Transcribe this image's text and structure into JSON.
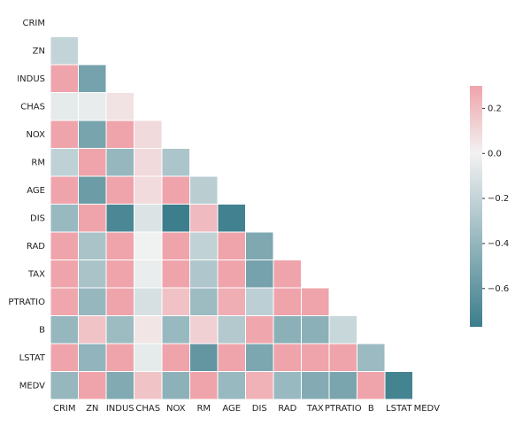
{
  "chart_data": {
    "type": "heatmap",
    "y_labels": [
      "CRIM",
      "ZN",
      "INDUS",
      "CHAS",
      "NOX",
      "RM",
      "AGE",
      "DIS",
      "RAD",
      "TAX",
      "PTRATIO",
      "B",
      "LSTAT",
      "MEDV"
    ],
    "x_labels": [
      "CRIM",
      "ZN",
      "INDUS",
      "CHAS",
      "NOX",
      "RM",
      "AGE",
      "DIS",
      "RAD",
      "TAX",
      "PTRATIO",
      "B",
      "LSTAT",
      "MEDV"
    ],
    "values": [
      [
        null,
        null,
        null,
        null,
        null,
        null,
        null,
        null,
        null,
        null,
        null,
        null,
        null,
        null
      ],
      [
        -0.2,
        null,
        null,
        null,
        null,
        null,
        null,
        null,
        null,
        null,
        null,
        null,
        null,
        null
      ],
      [
        0.41,
        -0.53,
        null,
        null,
        null,
        null,
        null,
        null,
        null,
        null,
        null,
        null,
        null,
        null
      ],
      [
        -0.056,
        -0.043,
        0.063,
        null,
        null,
        null,
        null,
        null,
        null,
        null,
        null,
        null,
        null,
        null
      ],
      [
        0.42,
        -0.52,
        0.76,
        0.091,
        null,
        null,
        null,
        null,
        null,
        null,
        null,
        null,
        null,
        null
      ],
      [
        -0.22,
        0.31,
        -0.39,
        0.091,
        -0.3,
        null,
        null,
        null,
        null,
        null,
        null,
        null,
        null,
        null
      ],
      [
        0.35,
        -0.57,
        0.64,
        0.087,
        0.73,
        -0.24,
        null,
        null,
        null,
        null,
        null,
        null,
        null,
        null
      ],
      [
        -0.38,
        0.66,
        -0.71,
        -0.099,
        -0.77,
        0.21,
        -0.75,
        null,
        null,
        null,
        null,
        null,
        null,
        null
      ],
      [
        0.63,
        -0.31,
        0.6,
        -0.0074,
        0.61,
        -0.21,
        0.46,
        -0.49,
        null,
        null,
        null,
        null,
        null,
        null
      ],
      [
        0.58,
        -0.31,
        0.72,
        -0.036,
        0.67,
        -0.29,
        0.51,
        -0.53,
        0.91,
        null,
        null,
        null,
        null,
        null
      ],
      [
        0.29,
        -0.39,
        0.38,
        -0.12,
        0.19,
        -0.36,
        0.26,
        -0.23,
        0.46,
        0.46,
        null,
        null,
        null,
        null
      ],
      [
        -0.39,
        0.18,
        -0.36,
        0.049,
        -0.38,
        0.13,
        -0.27,
        0.29,
        -0.44,
        -0.44,
        -0.18,
        null,
        null,
        null
      ],
      [
        0.46,
        -0.41,
        0.6,
        -0.054,
        0.59,
        -0.61,
        0.6,
        -0.5,
        0.49,
        0.54,
        0.37,
        -0.37,
        null,
        null
      ],
      [
        -0.39,
        0.36,
        -0.48,
        0.18,
        -0.43,
        0.7,
        -0.38,
        0.25,
        -0.38,
        -0.47,
        -0.51,
        0.33,
        -0.74,
        null
      ]
    ],
    "zlim": [
      -0.77,
      0.3
    ],
    "colorbar_ticks": [
      {
        "value": 0.2,
        "label": "0.2"
      },
      {
        "value": 0,
        "label": "0.0"
      },
      {
        "value": -0.2,
        "label": "−0.2"
      },
      {
        "value": -0.4,
        "label": "−0.4"
      },
      {
        "value": -0.6,
        "label": "−0.6"
      }
    ],
    "low_color": "#3d7e8c",
    "center_color": "#f2f2f2",
    "high_color": "#efa4ab"
  }
}
